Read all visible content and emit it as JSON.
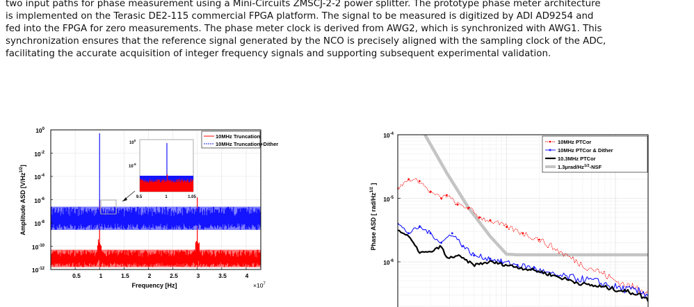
{
  "body_text": [
    "two input paths for phase measurement using a Mini-Circuits ZMSCJ-2-2 power splitter. The prototype phase meter architecture",
    "is implemented on the Terasic DE2-115 commercial FPGA platform. The signal to be measured is digitized by ADI AD9254 and",
    "fed into the FPGA for zero measurements. The phase meter clock is derived from AWG2, which is synchronized with AWG1. This",
    "synchronization ensures that the reference signal generated by the NCO is precisely aligned with the sampling clock of the ADC,",
    "facilitating the accurate acquisition of integer frequency signals and supporting subsequent experimental validation."
  ],
  "chart_data": [
    {
      "type": "line",
      "xlabel": "Frequency [Hz]",
      "x_multiplier": "×10⁷",
      "ylabel": "Amplitude ASD [V/Hz^1/2]",
      "xlim": [
        0,
        4.3
      ],
      "ylim_log10": [
        -12,
        0
      ],
      "yscale": "log",
      "x_ticks": [
        "0.5",
        "1",
        "1.5",
        "2",
        "2.5",
        "3",
        "3.5",
        "4"
      ],
      "y_ticks": [
        "10^0",
        "10^-2",
        "10^-4",
        "10^-6",
        "10^-8",
        "10^-10",
        "10^-12"
      ],
      "legend_position": "top-right",
      "grid": true,
      "series": [
        {
          "name": "10MHz Truncation",
          "color": "#ff0000",
          "noise_floor_log10": [
            -11.8,
            -10.3
          ],
          "peaks": [
            {
              "x": 1.0,
              "log10": -6.0
            },
            {
              "x": 3.0,
              "log10": -5.8
            }
          ]
        },
        {
          "name": "10MHz Truncation+Dither",
          "color": "#1414ff",
          "noise_floor_log10": [
            -8.6,
            -6.6
          ],
          "peaks": [
            {
              "x": 1.0,
              "log10": -0.3
            }
          ]
        }
      ],
      "inset": {
        "x_ticks": [
          "9.5",
          "1",
          "1.05"
        ],
        "y_ticks": [
          "10^0",
          "10^-5"
        ]
      }
    },
    {
      "type": "line",
      "xlabel": "",
      "ylabel": "Phase ASD [ rad/Hz^1/2 ]",
      "yscale": "log",
      "xscale": "log",
      "ylim_log10": [
        -6.55,
        -4.0
      ],
      "y_ticks": [
        "10^-4",
        "10^-5",
        "10^-6"
      ],
      "legend_position": "top-right",
      "grid": true,
      "series": [
        {
          "name": "10MHz PTCor",
          "color": "#ff0000",
          "style": "dotted-markers",
          "points_log10": [
            [
              0,
              -4.85
            ],
            [
              0.1,
              -4.7
            ],
            [
              0.2,
              -4.73
            ],
            [
              0.3,
              -4.9
            ],
            [
              0.4,
              -5.0
            ],
            [
              0.45,
              -4.95
            ],
            [
              0.55,
              -5.1
            ],
            [
              0.65,
              -5.15
            ],
            [
              0.75,
              -5.3
            ],
            [
              0.85,
              -5.35
            ],
            [
              1.0,
              -5.45
            ],
            [
              1.15,
              -5.55
            ],
            [
              1.3,
              -5.65
            ],
            [
              1.5,
              -5.85
            ],
            [
              1.7,
              -6.05
            ],
            [
              1.85,
              -6.15
            ],
            [
              2.0,
              -6.3
            ],
            [
              2.15,
              -6.4
            ],
            [
              2.3,
              -6.45
            ]
          ]
        },
        {
          "name": "10MHz PTCor & Dither",
          "color": "#1414ff",
          "style": "solid-markers",
          "points_log10": [
            [
              0,
              -5.4
            ],
            [
              0.1,
              -5.55
            ],
            [
              0.2,
              -5.45
            ],
            [
              0.3,
              -5.55
            ],
            [
              0.4,
              -5.7
            ],
            [
              0.5,
              -5.55
            ],
            [
              0.6,
              -5.75
            ],
            [
              0.7,
              -5.9
            ],
            [
              0.85,
              -5.95
            ],
            [
              0.95,
              -6.0
            ],
            [
              1.1,
              -6.05
            ],
            [
              1.25,
              -6.1
            ],
            [
              1.4,
              -6.2
            ],
            [
              1.6,
              -6.25
            ],
            [
              1.8,
              -6.3
            ],
            [
              2.0,
              -6.4
            ],
            [
              2.15,
              -6.45
            ],
            [
              2.3,
              -6.5
            ]
          ]
        },
        {
          "name": "10.3MHz PTCor",
          "color": "#000000",
          "style": "solid-thick",
          "points_log10": [
            [
              0,
              -5.5
            ],
            [
              0.1,
              -5.6
            ],
            [
              0.2,
              -5.85
            ],
            [
              0.3,
              -5.85
            ],
            [
              0.4,
              -5.75
            ],
            [
              0.45,
              -5.95
            ],
            [
              0.55,
              -5.9
            ],
            [
              0.7,
              -6.05
            ],
            [
              0.85,
              -6.0
            ],
            [
              1.0,
              -6.05
            ],
            [
              1.15,
              -6.1
            ],
            [
              1.3,
              -6.15
            ],
            [
              1.5,
              -6.25
            ],
            [
              1.7,
              -6.35
            ],
            [
              1.9,
              -6.4
            ],
            [
              2.05,
              -6.45
            ],
            [
              2.2,
              -6.5
            ],
            [
              2.3,
              -6.6
            ]
          ]
        },
        {
          "name": "1.3μrad/Hz^1/2-NSF",
          "color": "#c4c4c4",
          "style": "thick",
          "points_log10": [
            [
              0.25,
              -4.0
            ],
            [
              0.45,
              -4.6
            ],
            [
              0.65,
              -5.15
            ],
            [
              0.85,
              -5.6
            ],
            [
              1.0,
              -5.88
            ],
            [
              1.1,
              -5.89
            ],
            [
              2.3,
              -5.89
            ]
          ]
        }
      ]
    }
  ],
  "legend1": {
    "item1": "10MHz Truncation",
    "item2": "10MHz Truncation+Dither"
  },
  "legend2": {
    "item1": "10MHz PTCor",
    "item2": "10MHz PTCor & Dither",
    "item3": "10.3MHz PTCor",
    "item4": "1.3μrad/Hz",
    "item4_sup": "1/2",
    "item4_tail": "-NSF"
  },
  "axis1": {
    "xlabel": "Frequency [Hz]",
    "ylabel_main": "Amplitude ASD [V/Hz",
    "ylabel_sup": "1/2",
    "ylabel_tail": "]",
    "x_mult_base": "×10",
    "x_mult_exp": "7",
    "xticks": [
      "0.5",
      "1",
      "1.5",
      "2",
      "2.5",
      "3",
      "3.5",
      "4"
    ],
    "yticks": [
      {
        "base": "10",
        "exp": "0"
      },
      {
        "base": "10",
        "exp": "-2"
      },
      {
        "base": "10",
        "exp": "-4"
      },
      {
        "base": "10",
        "exp": "-6"
      },
      {
        "base": "10",
        "exp": "-8"
      },
      {
        "base": "10",
        "exp": "-10"
      },
      {
        "base": "10",
        "exp": "-12"
      }
    ],
    "inset_xticks": [
      "9.5",
      "1",
      "1.05"
    ],
    "inset_yticks": [
      {
        "base": "10",
        "exp": "0"
      },
      {
        "base": "10",
        "exp": "-5"
      }
    ]
  },
  "axis2": {
    "ylabel_main": "Phase ASD [ rad/Hz",
    "ylabel_sup": "1/2",
    "ylabel_tail": " ]",
    "yticks": [
      {
        "base": "10",
        "exp": "-4"
      },
      {
        "base": "10",
        "exp": "-5"
      },
      {
        "base": "10",
        "exp": "-6"
      }
    ]
  }
}
